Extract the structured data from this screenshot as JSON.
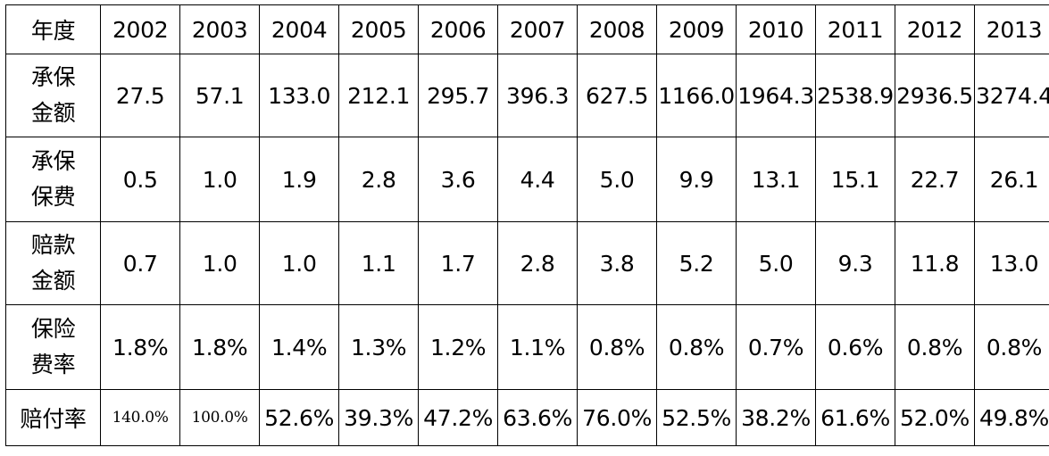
{
  "table": {
    "header_label": "年度",
    "years": [
      "2002",
      "2003",
      "2004",
      "2005",
      "2006",
      "2007",
      "2008",
      "2009",
      "2010",
      "2011",
      "2012",
      "2013"
    ],
    "rows": [
      {
        "label_line1": "承保",
        "label_line2": "金额",
        "values": [
          "27.5",
          "57.1",
          "133.0",
          "212.1",
          "295.7",
          "396.3",
          "627.5",
          "1166.0",
          "1964.3",
          "2538.9",
          "2936.5",
          "3274.4"
        ]
      },
      {
        "label_line1": "承保",
        "label_line2": "保费",
        "values": [
          "0.5",
          "1.0",
          "1.9",
          "2.8",
          "3.6",
          "4.4",
          "5.0",
          "9.9",
          "13.1",
          "15.1",
          "22.7",
          "26.1"
        ]
      },
      {
        "label_line1": "赔款",
        "label_line2": "金额",
        "values": [
          "0.7",
          "1.0",
          "1.0",
          "1.1",
          "1.7",
          "2.8",
          "3.8",
          "5.2",
          "5.0",
          "9.3",
          "11.8",
          "13.0"
        ]
      },
      {
        "label_line1": "保险",
        "label_line2": "费率",
        "values": [
          "1.8%",
          "1.8%",
          "1.4%",
          "1.3%",
          "1.2%",
          "1.1%",
          "0.8%",
          "0.8%",
          "0.7%",
          "0.6%",
          "0.8%",
          "0.8%"
        ]
      },
      {
        "label": "赔付率",
        "values": [
          "140.0%",
          "100.0%",
          "52.6%",
          "39.3%",
          "47.2%",
          "63.6%",
          "76.0%",
          "52.5%",
          "38.2%",
          "61.6%",
          "52.0%",
          "49.8%"
        ]
      }
    ]
  }
}
